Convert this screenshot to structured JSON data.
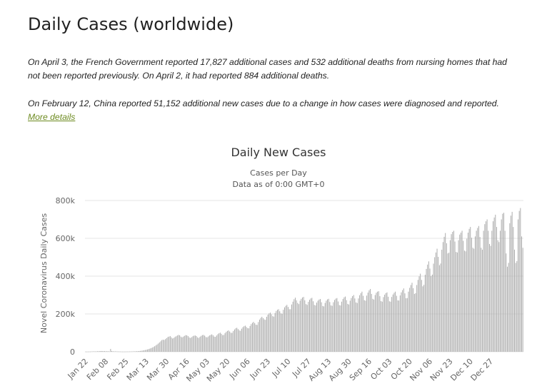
{
  "page": {
    "heading": "Daily Cases (worldwide)",
    "note1": "On April 3, the French Government reported 17,827 additional cases and 532 additional deaths from nursing homes that had not been reported previously. On April 2, it had reported 884 additional deaths.",
    "note2_text": "On February 12, China reported 51,152 additional new cases due to a change in how cases were diagnosed and reported. ",
    "note2_link": "More details"
  },
  "chart_data": {
    "type": "bar",
    "title": "Daily New Cases",
    "subtitle": "Cases per Day",
    "subtitle2": "Data as of 0:00 GMT+0",
    "ylabel": "Novel Coronavirus Daily Cases",
    "xlabel": "",
    "ylim": [
      0,
      800000
    ],
    "yticks": [
      0,
      200000,
      400000,
      600000,
      800000
    ],
    "ytick_labels": [
      "0",
      "200k",
      "400k",
      "600k",
      "800k"
    ],
    "xtick_labels": [
      "Jan 22",
      "Feb 08",
      "Feb 25",
      "Mar 13",
      "Mar 30",
      "Apr 16",
      "May 03",
      "May 20",
      "Jun 06",
      "Jun 23",
      "Jul 10",
      "Jul 27",
      "Aug 13",
      "Aug 30",
      "Sep 16",
      "Oct 03",
      "Oct 20",
      "Nov 06",
      "Nov 23",
      "Dec 10",
      "Dec 27"
    ],
    "grid": true,
    "legend": "none",
    "bar_color": "#a6a6a6",
    "start_date": "2020-01-22",
    "values": [
      600,
      300,
      400,
      700,
      800,
      1400,
      1700,
      2000,
      1700,
      2100,
      2600,
      2800,
      3200,
      3900,
      3700,
      3200,
      3500,
      2700,
      3000,
      2600,
      2000,
      15200,
      4000,
      2600,
      2000,
      2100,
      1900,
      1300,
      1200,
      1000,
      600,
      500,
      400,
      400,
      600,
      800,
      1000,
      1200,
      1400,
      1500,
      1800,
      2100,
      2400,
      2800,
      3300,
      3800,
      4500,
      5400,
      6400,
      7600,
      8900,
      10500,
      12300,
      14400,
      16700,
      19300,
      22200,
      25400,
      29300,
      33600,
      38300,
      43500,
      49200,
      55300,
      61700,
      64000,
      62000,
      67000,
      72000,
      78000,
      80000,
      83000,
      76000,
      70000,
      73000,
      78000,
      82000,
      86000,
      89000,
      87000,
      80000,
      76000,
      80000,
      84000,
      88000,
      87000,
      83000,
      76000,
      73000,
      77000,
      82000,
      85000,
      86000,
      83000,
      76000,
      73000,
      79000,
      84000,
      88000,
      89000,
      85000,
      78000,
      76000,
      81000,
      86000,
      89000,
      92000,
      87000,
      80000,
      79000,
      86000,
      93000,
      98000,
      101000,
      95000,
      88000,
      89000,
      98000,
      105000,
      110000,
      113000,
      107000,
      100000,
      100000,
      110000,
      118000,
      124000,
      127000,
      120000,
      113000,
      111000,
      122000,
      130000,
      135000,
      138000,
      131000,
      125000,
      124000,
      136000,
      146000,
      153000,
      158000,
      151000,
      143000,
      142000,
      157000,
      170000,
      179000,
      185000,
      178000,
      171000,
      169000,
      185000,
      196000,
      203000,
      207000,
      198000,
      188000,
      186000,
      205000,
      216000,
      222000,
      225000,
      214000,
      203000,
      201000,
      222000,
      235000,
      243000,
      248000,
      237000,
      225000,
      225000,
      250000,
      265000,
      278000,
      286000,
      272000,
      258000,
      252000,
      270000,
      280000,
      287000,
      290000,
      272000,
      252000,
      248000,
      264000,
      275000,
      282000,
      285000,
      267000,
      248000,
      245000,
      260000,
      270000,
      276000,
      279000,
      262000,
      242000,
      240000,
      258000,
      270000,
      277000,
      280000,
      263000,
      245000,
      243000,
      262000,
      274000,
      281000,
      284000,
      266000,
      247000,
      245000,
      265000,
      279000,
      288000,
      292000,
      273000,
      253000,
      250000,
      270000,
      284000,
      294000,
      300000,
      282000,
      261000,
      258000,
      282000,
      299000,
      310000,
      318000,
      296000,
      273000,
      270000,
      297000,
      313000,
      325000,
      332000,
      306000,
      280000,
      276000,
      300000,
      312000,
      318000,
      320000,
      294000,
      268000,
      265000,
      289000,
      302000,
      310000,
      314000,
      291000,
      267000,
      265000,
      290000,
      303000,
      312000,
      318000,
      296000,
      272000,
      271000,
      298000,
      314000,
      326000,
      335000,
      309000,
      283000,
      284000,
      318000,
      338000,
      353000,
      365000,
      336000,
      306000,
      310000,
      353000,
      380000,
      399000,
      413000,
      380000,
      346000,
      354000,
      407000,
      438000,
      461000,
      478000,
      440000,
      400000,
      408000,
      466000,
      500000,
      525000,
      545000,
      502000,
      458000,
      467000,
      540000,
      580000,
      608000,
      628000,
      574000,
      520000,
      524000,
      590000,
      622000,
      634000,
      640000,
      583000,
      528000,
      525000,
      590000,
      620000,
      630000,
      640000,
      587000,
      535000,
      531000,
      598000,
      630000,
      650000,
      660000,
      603000,
      550000,
      545000,
      610000,
      640000,
      655000,
      665000,
      607000,
      550000,
      540000,
      640000,
      675000,
      690000,
      700000,
      640000,
      570000,
      560000,
      640000,
      690000,
      710000,
      725000,
      660000,
      590000,
      580000,
      640000,
      700000,
      730000,
      735000,
      640000,
      520000,
      450000,
      470000,
      680000,
      720000,
      740000,
      660000,
      540000,
      470000,
      480000,
      700000,
      745000,
      760000,
      610000,
      550000
    ]
  }
}
